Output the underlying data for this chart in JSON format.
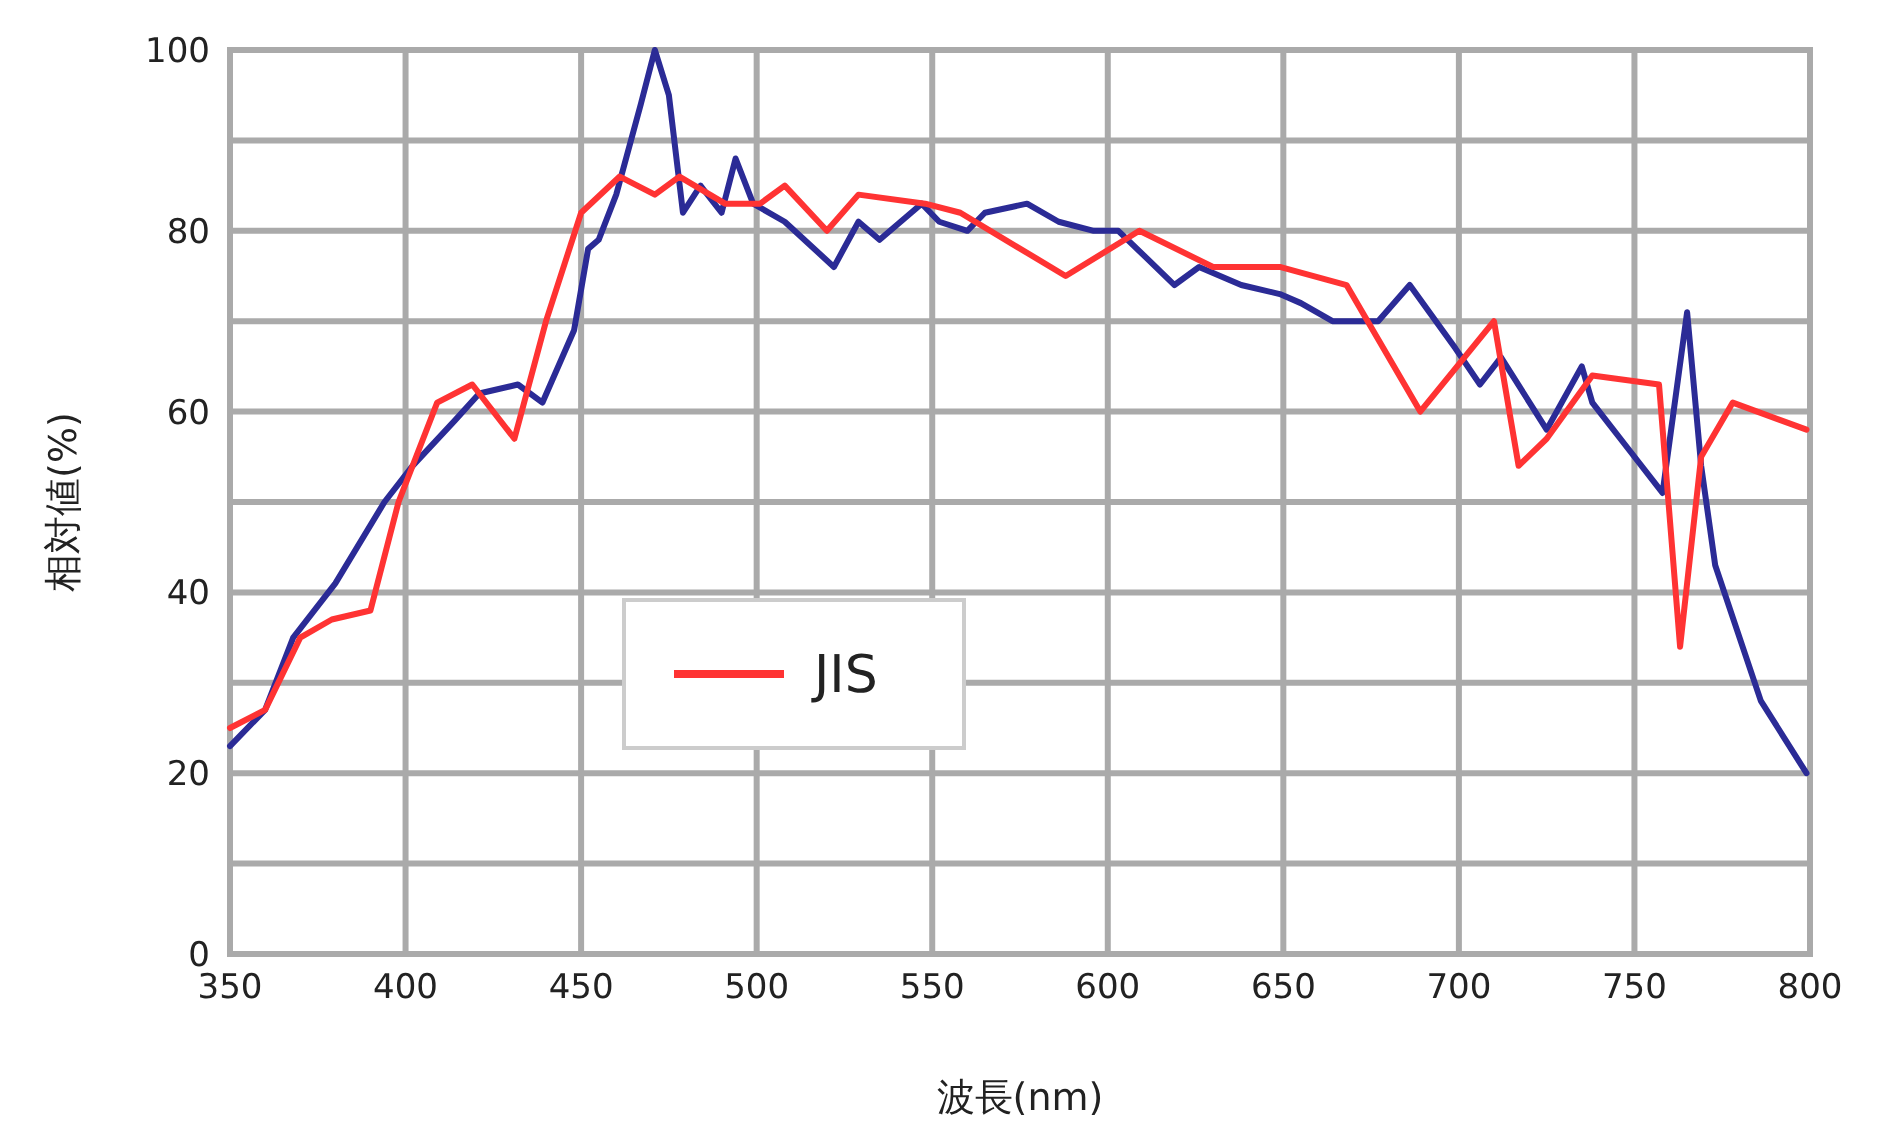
{
  "chart_data": {
    "type": "line",
    "xlabel": "波長(nm)",
    "ylabel": "相対値(%)",
    "xlim": [
      350,
      800
    ],
    "xticks": [
      350,
      400,
      450,
      500,
      550,
      600,
      650,
      700,
      750,
      800
    ],
    "ylim": [
      0,
      100
    ],
    "yticks": [
      0,
      {
        "value": 10,
        "label": null
      },
      20,
      {
        "value": 30,
        "label": null
      },
      40,
      {
        "value": 50,
        "label": null
      },
      60,
      {
        "value": 70,
        "label": null
      },
      80,
      {
        "value": 90,
        "label": null
      },
      100
    ],
    "grid": true,
    "legend": "bottom",
    "marker": "none",
    "line_style": "solid",
    "series": [
      {
        "color": "#2b2b96",
        "x": [
          350,
          360,
          368,
          380,
          394,
          402,
          414,
          421,
          432,
          439,
          448,
          452,
          455,
          460,
          467,
          471,
          475,
          479,
          484,
          490,
          494,
          499,
          508,
          522,
          529,
          535,
          547,
          552,
          560,
          565,
          577,
          586,
          596,
          603,
          611,
          619,
          626,
          638,
          649,
          655,
          664,
          677,
          686,
          699,
          706,
          712,
          725,
          735,
          738,
          748,
          758,
          765,
          769,
          773,
          786,
          799
        ],
        "values": [
          23,
          27,
          35,
          41,
          50,
          54,
          59,
          62,
          63,
          61,
          69,
          78,
          79,
          84,
          94,
          100,
          95,
          82,
          85,
          82,
          88,
          83,
          81,
          76,
          81,
          79,
          83,
          81,
          80,
          82,
          83,
          81,
          80,
          80,
          77,
          74,
          76,
          74,
          73,
          72,
          70,
          70,
          74,
          67,
          63,
          66,
          58,
          65,
          61,
          56,
          51,
          71,
          54,
          43,
          28,
          20
        ]
      },
      {
        "name": "JIS",
        "color": "#ff3333",
        "x": [
          350,
          360,
          370,
          379,
          390,
          398,
          409,
          419,
          431,
          440,
          450,
          461,
          471,
          478,
          491,
          501,
          508,
          520,
          529,
          548,
          558,
          588,
          609,
          630,
          649,
          668,
          689,
          710,
          717,
          725,
          738,
          757,
          763,
          769,
          778,
          799
        ],
        "values": [
          25,
          27,
          35,
          37,
          38,
          50,
          61,
          63,
          57,
          70,
          82,
          86,
          84,
          86,
          83,
          83,
          85,
          80,
          84,
          83,
          82,
          75,
          80,
          76,
          76,
          74,
          60,
          70,
          54,
          57,
          64,
          63,
          34,
          55,
          61,
          58
        ]
      }
    ]
  }
}
